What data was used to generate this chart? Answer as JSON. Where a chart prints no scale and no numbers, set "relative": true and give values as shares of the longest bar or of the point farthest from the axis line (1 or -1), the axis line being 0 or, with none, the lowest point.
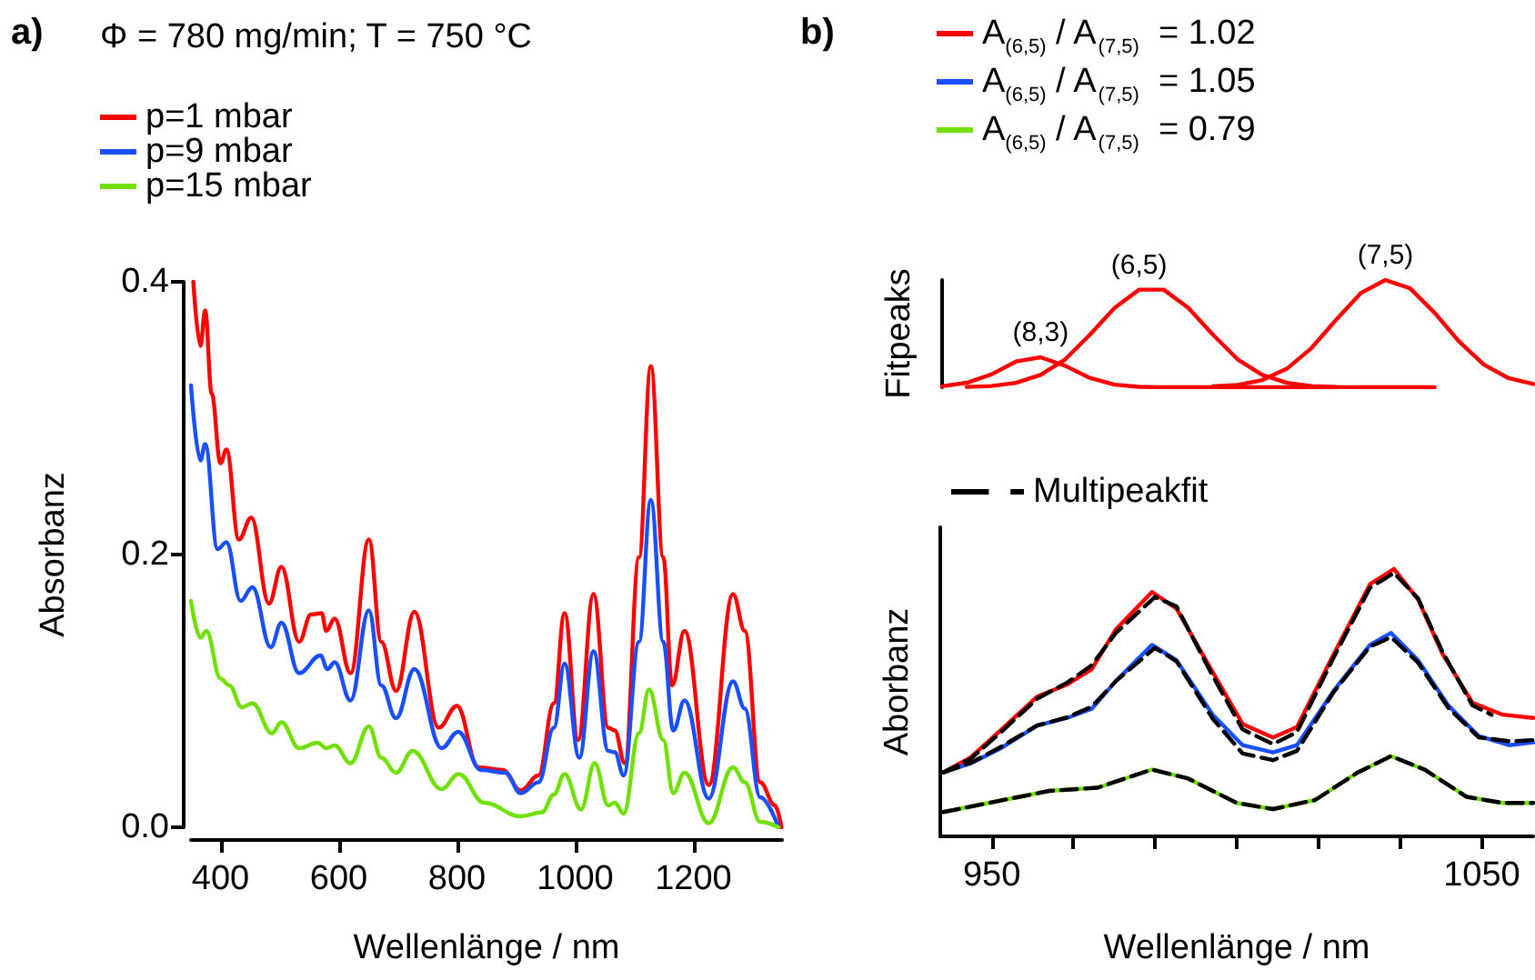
{
  "chart_data": [
    {
      "type": "line",
      "title": "Φ = 780 mg/min; T = 750 °C",
      "xlabel": "Wellenlänge / nm",
      "ylabel": "Absorbanz",
      "annotations": [
        "a)"
      ],
      "legend": "top left",
      "marker": "none",
      "xlim": [
        350,
        1350
      ],
      "xticks": [
        400,
        600,
        800,
        1000,
        1200
      ],
      "ylim": [
        0,
        0.4
      ],
      "yticks": [
        {
          "value": 0,
          "label": "0.0"
        },
        0.2,
        0.4
      ],
      "series": [
        {
          "name": "p=1 mbar",
          "color": "#ff0000",
          "x": [
            354,
            366,
            374,
            385,
            400,
            410,
            431,
            452,
            482,
            503,
            533,
            553,
            571,
            579,
            593,
            620,
            651,
            672,
            697,
            728,
            769,
            800,
            836,
            877,
            908,
            938,
            964,
            982,
            1005,
            1031,
            1056,
            1067,
            1084,
            1108,
            1128,
            1149,
            1164,
            1185,
            1226,
            1267,
            1287,
            1313,
            1338,
            1349
          ],
          "values": [
            0.4,
            0.353,
            0.379,
            0.318,
            0.267,
            0.277,
            0.211,
            0.227,
            0.164,
            0.191,
            0.136,
            0.156,
            0.157,
            0.144,
            0.153,
            0.113,
            0.211,
            0.136,
            0.1,
            0.158,
            0.073,
            0.089,
            0.044,
            0.042,
            0.027,
            0.038,
            0.091,
            0.157,
            0.064,
            0.171,
            0.073,
            0.071,
            0.047,
            0.198,
            0.338,
            0.198,
            0.104,
            0.144,
            0.031,
            0.171,
            0.144,
            0.033,
            0.016,
            0.0
          ]
        },
        {
          "name": "p=9 mbar",
          "color": "#1a4fff",
          "x": [
            350,
            366,
            374,
            395,
            410,
            434,
            454,
            485,
            503,
            533,
            569,
            581,
            593,
            620,
            651,
            672,
            697,
            728,
            774,
            802,
            841,
            882,
            908,
            938,
            964,
            982,
            1007,
            1031,
            1056,
            1067,
            1082,
            1108,
            1128,
            1149,
            1166,
            1185,
            1226,
            1267,
            1287,
            1313,
            1344
          ],
          "values": [
            0.324,
            0.269,
            0.281,
            0.204,
            0.209,
            0.166,
            0.176,
            0.132,
            0.15,
            0.113,
            0.126,
            0.116,
            0.121,
            0.093,
            0.159,
            0.104,
            0.08,
            0.116,
            0.058,
            0.07,
            0.042,
            0.04,
            0.025,
            0.033,
            0.073,
            0.12,
            0.051,
            0.129,
            0.056,
            0.055,
            0.038,
            0.136,
            0.24,
            0.136,
            0.071,
            0.093,
            0.021,
            0.107,
            0.087,
            0.022,
            0.0
          ]
        },
        {
          "name": "p=15 mbar",
          "color": "#70e000",
          "x": [
            350,
            366,
            376,
            400,
            415,
            436,
            454,
            487,
            503,
            533,
            564,
            579,
            593,
            620,
            651,
            672,
            697,
            725,
            774,
            803,
            846,
            908,
            944,
            964,
            982,
            1010,
            1033,
            1056,
            1067,
            1082,
            1108,
            1125,
            1149,
            1166,
            1185,
            1226,
            1267,
            1287,
            1313,
            1344
          ],
          "values": [
            0.166,
            0.139,
            0.144,
            0.109,
            0.104,
            0.088,
            0.091,
            0.069,
            0.077,
            0.058,
            0.062,
            0.058,
            0.06,
            0.047,
            0.074,
            0.051,
            0.04,
            0.056,
            0.028,
            0.039,
            0.018,
            0.008,
            0.011,
            0.024,
            0.039,
            0.013,
            0.047,
            0.016,
            0.018,
            0.01,
            0.069,
            0.101,
            0.064,
            0.025,
            0.04,
            0.003,
            0.044,
            0.033,
            0.004,
            0.0
          ]
        }
      ]
    },
    {
      "type": "line",
      "ylabel": "Fitpeaks",
      "relative": true,
      "tick_labels": false,
      "marker": "none",
      "annotations": [
        "(8,3)",
        "(6,5)",
        "(7,5)"
      ],
      "categories": [
        null,
        null,
        null,
        null,
        null,
        null,
        null,
        null,
        null,
        null,
        null,
        null,
        null,
        null,
        null,
        null,
        null,
        null,
        null,
        null,
        null,
        null,
        null,
        null,
        null
      ],
      "series": [
        {
          "color": "#ff0000",
          "values": [
            0.009,
            0.042,
            0.12,
            0.24,
            0.28,
            0.2,
            0.087,
            0.024,
            0.004,
            0,
            0,
            0,
            0,
            0,
            0,
            0,
            0,
            null,
            null,
            null,
            null,
            null,
            null,
            null,
            null
          ]
        },
        {
          "color": "#ff0000",
          "values": [
            null,
            0.003,
            0.012,
            0.041,
            0.115,
            0.26,
            0.49,
            0.74,
            0.91,
            0.91,
            0.74,
            0.49,
            0.26,
            0.115,
            0.041,
            0.012,
            0.003,
            0,
            0,
            0,
            0,
            null,
            null,
            null,
            null
          ]
        },
        {
          "color": "#ff0000",
          "values": [
            null,
            null,
            null,
            null,
            null,
            null,
            null,
            null,
            null,
            null,
            null,
            0.008,
            0.021,
            0.067,
            0.173,
            0.366,
            0.629,
            0.878,
            1.0,
            0.923,
            0.694,
            0.424,
            0.211,
            0.085,
            0.03
          ]
        }
      ]
    },
    {
      "type": "line",
      "xlabel": "Wellenlänge / nm",
      "ylabel": "Aborbanz",
      "relative": true,
      "tick_labels": "x",
      "annotations": [
        "b)"
      ],
      "legend": "top left",
      "marker": "none",
      "xlim": [
        939.5,
        1060.5
      ],
      "xticks": [
        950,
        {
          "value": 966.67,
          "label": null
        },
        {
          "value": 983.33,
          "label": null
        },
        {
          "value": 1000,
          "label": null
        },
        {
          "value": 1016.67,
          "label": null
        },
        {
          "value": 1033.33,
          "label": null
        },
        1050
      ],
      "series": [
        {
          "name": "A$_{(6,5)}$ / A$_{(7,5)}$  = 1.02",
          "color": "#ff0000",
          "x": [
            940.1,
            945.7,
            951.9,
            959.3,
            965.4,
            970.4,
            975.3,
            982.7,
            987.7,
            995.1,
            1001.2,
            1007.4,
            1012.3,
            1019.8,
            1027.2,
            1032.1,
            1037,
            1042,
            1048.1,
            1054.3,
            1060.5
          ],
          "values": [
            0.239,
            0.295,
            0.398,
            0.523,
            0.568,
            0.625,
            0.773,
            0.914,
            0.852,
            0.614,
            0.42,
            0.37,
            0.409,
            0.682,
            0.943,
            1.0,
            0.886,
            0.682,
            0.5,
            0.455,
            0.443
          ]
        },
        {
          "name": "A$_{(6,5)}$ / A$_{(7,5)}$  = 1.05",
          "color": "#1a4fff",
          "x": [
            940.1,
            945.7,
            951.9,
            959.3,
            965.4,
            970.4,
            975.3,
            982.7,
            987.7,
            995.1,
            1001.2,
            1007.4,
            1012.3,
            1019.8,
            1027.2,
            1031.5,
            1037,
            1043.2,
            1049.4,
            1055.6,
            1060.5
          ],
          "values": [
            0.239,
            0.273,
            0.33,
            0.414,
            0.443,
            0.477,
            0.58,
            0.716,
            0.659,
            0.455,
            0.341,
            0.314,
            0.341,
            0.545,
            0.716,
            0.761,
            0.659,
            0.489,
            0.375,
            0.341,
            0.352
          ]
        },
        {
          "name": "A$_{(6,5)}$ / A$_{(7,5)}$  = 0.79",
          "color": "#70e000",
          "x": [
            940.1,
            949.4,
            961.7,
            971.6,
            982.7,
            990.1,
            1000,
            1007.4,
            1016,
            1024.7,
            1031.5,
            1038.3,
            1046.9,
            1054.3,
            1060.5
          ],
          "values": [
            0.091,
            0.125,
            0.17,
            0.182,
            0.25,
            0.216,
            0.125,
            0.102,
            0.136,
            0.239,
            0.3,
            0.25,
            0.148,
            0.125,
            0.125
          ]
        },
        {
          "name": "Multipeakfit",
          "color": "#000000",
          "line_style": "dashed",
          "x": [
            940.1,
            945.7,
            951.9,
            959.3,
            965.4,
            970.4,
            975.3,
            983.3,
            987.7,
            995.1,
            1001.2,
            1007.4,
            1012.3,
            1019.8,
            1027.2,
            1032.1,
            1037,
            1042,
            1048.1,
            1052
          ],
          "values": [
            0.239,
            0.29,
            0.39,
            0.515,
            0.575,
            0.64,
            0.76,
            0.895,
            0.86,
            0.6,
            0.4,
            0.345,
            0.39,
            0.67,
            0.93,
            0.985,
            0.89,
            0.69,
            0.49,
            0.455
          ]
        },
        {
          "color": "#000000",
          "line_style": "dashed",
          "x": [
            940.1,
            945.7,
            951.9,
            959.3,
            965.4,
            970.4,
            975.3,
            983.3,
            987.7,
            995.1,
            1001.2,
            1007.4,
            1012.3,
            1019.8,
            1027.2,
            1031.5,
            1037,
            1043.2,
            1049.4,
            1056,
            1060.5
          ],
          "values": [
            0.239,
            0.275,
            0.335,
            0.415,
            0.445,
            0.485,
            0.58,
            0.705,
            0.655,
            0.44,
            0.31,
            0.285,
            0.32,
            0.54,
            0.71,
            0.745,
            0.65,
            0.48,
            0.37,
            0.355,
            0.36
          ]
        },
        {
          "color": "#000000",
          "line_style": "dashed",
          "x": [
            940.1,
            949.4,
            961.7,
            971.6,
            982.7,
            990.1,
            1000,
            1007.4,
            1016,
            1024.7,
            1031.5,
            1038.3,
            1046.9,
            1054.3,
            1060.5
          ],
          "values": [
            0.091,
            0.125,
            0.17,
            0.182,
            0.25,
            0.216,
            0.125,
            0.102,
            0.136,
            0.239,
            0.3,
            0.25,
            0.148,
            0.125,
            0.125
          ]
        }
      ]
    }
  ]
}
